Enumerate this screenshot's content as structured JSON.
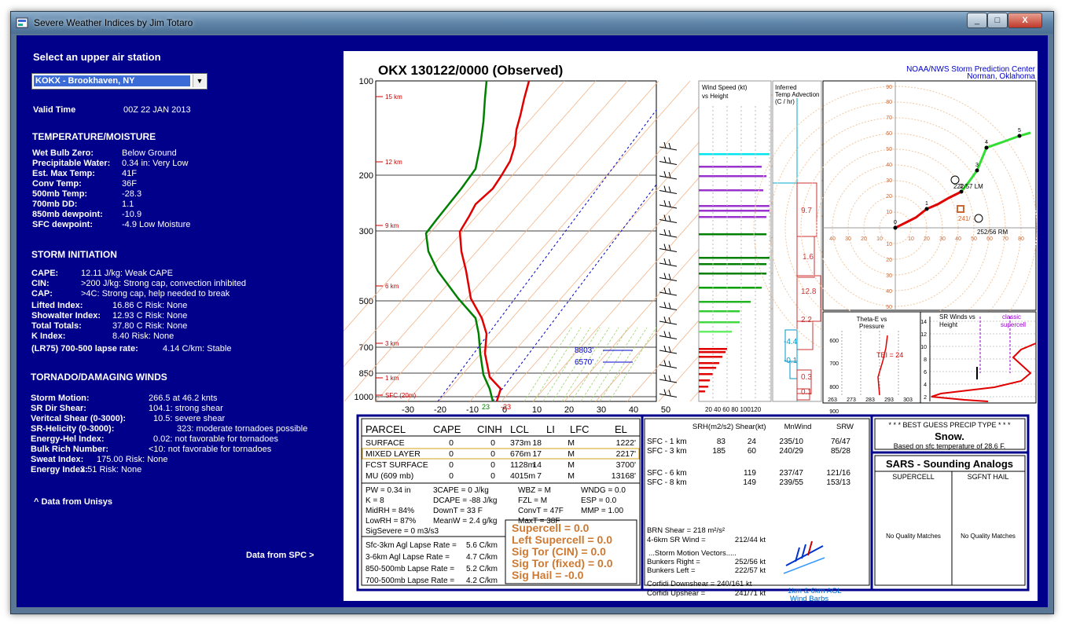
{
  "window": {
    "title": "Severe Weather Indices by Jim Totaro",
    "min": "_",
    "max": "□",
    "close": "X"
  },
  "left": {
    "station_prompt": "Select an upper air station",
    "station_value": "KOKX - Brookhaven, NY",
    "valid_label": "Valid Time",
    "valid_value": "00Z 22 JAN 2013",
    "temp_title": "TEMPERATURE/MOISTURE",
    "temp": [
      {
        "k": "Wet Bulb Zero:",
        "v": "Below Ground"
      },
      {
        "k": "Precipitable Water:",
        "v": "0.34 in: Very Low"
      },
      {
        "k": "Est. Max Temp:",
        "v": "41F"
      },
      {
        "k": "Conv Temp:",
        "v": "36F"
      },
      {
        "k": "500mb Temp:",
        "v": "-28.3"
      },
      {
        "k": "700mb DD:",
        "v": "1.1"
      },
      {
        "k": "850mb dewpoint:",
        "v": "-10.9"
      },
      {
        "k": "SFC dewpoint:",
        "v": "-4.9  Low Moisture"
      }
    ],
    "storm_title": "STORM INITIATION",
    "storm": [
      {
        "k": "CAPE:",
        "v": "12.11 J/kg: Weak CAPE"
      },
      {
        "k": "CIN:",
        "v": ">200 J/kg: Strong cap, convection inhibited"
      },
      {
        "k": "CAP:",
        "v": ">4C: Strong cap, help needed to break"
      },
      {
        "k": "Lifted Index:",
        "v": "16.86 C Risk: None"
      },
      {
        "k": "Showalter Index:",
        "v": "12.93 C Risk: None"
      },
      {
        "k": "Total Totals:",
        "v": "37.80 C Risk: None"
      },
      {
        "k": "K Index:",
        "v": "8.40   Risk: None"
      },
      {
        "k": "(LR75) 700-500 lapse rate:",
        "v": "4.14 C/km: Stable"
      }
    ],
    "tor_title": "TORNADO/DAMAGING WINDS",
    "tor": [
      {
        "k": "Storm Motion:",
        "v": "266.5 at   46.2 knts"
      },
      {
        "k": "SR Dir Shear:",
        "v": "104.1: strong shear"
      },
      {
        "k": "Veritcal Shear (0-3000):",
        "v": "10.5: severe shear"
      },
      {
        "k": "SR-Helicity (0-3000):",
        "v": "323: moderate tornadoes possible"
      },
      {
        "k": "Energy-Hel Index:",
        "v": "0.02: not favorable for tornadoes"
      },
      {
        "k": "Bulk Rich Number:",
        "v": "<10: not favorable for tornadoes"
      },
      {
        "k": "Sweat Index:",
        "v": "175.00   Risk: None"
      },
      {
        "k": "Energy Index:",
        "v": "3.51   Risk: None"
      }
    ],
    "unisys": "^ Data from Unisys",
    "spc": "Data from SPC >"
  },
  "sounding": {
    "title": "OKX   130122/0000  (Observed)",
    "source1": "NOAA/NWS Storm Prediction Center",
    "source2": "Norman, Oklahoma",
    "pressure_ticks": [
      "100",
      "200",
      "300",
      "500",
      "700",
      "850",
      "1000"
    ],
    "temp_ticks": [
      "-30",
      "-20",
      "-10",
      "0",
      "10",
      "20",
      "30",
      "40",
      "50"
    ],
    "height_labels": [
      "15 km",
      "12 km",
      "9 km",
      "6 km",
      "3 km",
      "1 km",
      "SFC (20m)"
    ],
    "lfc_labels": [
      "8803'",
      "6570'"
    ],
    "sfc_temp": "-23",
    "sfc_dew": "23",
    "wind_title1": "Wind Speed (kt)",
    "wind_title2": "vs Height",
    "wind_ticks": "20 40 60 80 100120",
    "adv_title": [
      "Inferred",
      "Temp Advection",
      "(C / hr)"
    ],
    "adv_values": [
      "9.7",
      "1.6",
      "12.8",
      "2.2",
      "-4.4",
      "-0.1",
      "0.3",
      "0.1"
    ],
    "hodo_rings": [
      "90",
      "80",
      "70",
      "60",
      "50",
      "40",
      "30",
      "20",
      "10",
      "10",
      "20",
      "30",
      "40",
      "50"
    ],
    "hodo_x": [
      "40",
      "30",
      "20",
      "10",
      "10",
      "20",
      "30",
      "40",
      "50",
      "60",
      "70",
      "80"
    ],
    "hodo_labels": {
      "lm": "222/57 LM",
      "rm": "252/56 RM",
      "mean": "241/"
    },
    "hodo_points": [
      "0",
      "1",
      "2",
      "3",
      "4",
      "5"
    ],
    "theta_title": [
      "Theta-E vs",
      "Pressure"
    ],
    "theta_ticks": [
      "600",
      "700",
      "800",
      "900"
    ],
    "theta_x": [
      "263",
      "273",
      "283",
      "293",
      "303"
    ],
    "tei": "TEI = 24",
    "srw_title": [
      "SR Winds vs",
      "Height"
    ],
    "srw_class": [
      "classic",
      "supercell"
    ],
    "srw_ticks": [
      "14",
      "12",
      "10",
      "8",
      "6",
      "4",
      "2"
    ],
    "parcel_headers": [
      "PARCEL",
      "CAPE",
      "CINH",
      "LCL",
      "LI",
      "LFC",
      "EL"
    ],
    "parcels": [
      [
        "SURFACE",
        "0",
        "0",
        "373m",
        "18",
        "M",
        "1222'"
      ],
      [
        "MIXED LAYER",
        "0",
        "0",
        "676m",
        "17",
        "M",
        "2217'"
      ],
      [
        "FCST SURFACE",
        "0",
        "0",
        "1128m",
        "14",
        "M",
        "3700'"
      ],
      [
        "MU   (609 mb)",
        "0",
        "0",
        "4015m",
        "7",
        "M",
        "13168'"
      ]
    ],
    "misc": [
      [
        "PW = 0.34  in",
        "3CAPE = 0 J/kg",
        "WBZ = M",
        "WNDG = 0.0"
      ],
      [
        "K = 8",
        "DCAPE = -88 J/kg",
        "FZL = M",
        "ESP = 0.0"
      ],
      [
        "MidRH = 84%",
        "DownT = 33 F",
        "ConvT = 47F",
        "MMP = 1.00"
      ],
      [
        "LowRH = 87%",
        "MeanW = 2.4 g/kg",
        "MaxT = 38F",
        ""
      ]
    ],
    "sigsevere": "SigSevere = 0 m3/s3",
    "lapse": [
      [
        "Sfc-3km Agl Lapse Rate =",
        "5.6 C/km"
      ],
      [
        "3-6km Agl Lapse Rate =",
        "4.7 C/km"
      ],
      [
        "850-500mb Lapse Rate =",
        "5.2 C/km"
      ],
      [
        "700-500mb Lapse Rate =",
        "4.2 C/km"
      ]
    ],
    "params": [
      "Supercell = 0.0",
      "Left Supercell = 0.0",
      "Sig Tor (CIN) = 0.0",
      "Sig Tor (fixed) = 0.0",
      "Sig Hail = -0.0"
    ],
    "shear_headers": [
      "SRH(m2/s2)",
      "Shear(kt)",
      "MnWind",
      "SRW"
    ],
    "shear_rows": [
      [
        "SFC - 1 km",
        "83",
        "24",
        "235/10",
        "76/47"
      ],
      [
        "SFC - 3 km",
        "185",
        "60",
        "240/29",
        "85/28"
      ],
      [
        "SFC - 6 km",
        "",
        "119",
        "237/47",
        "121/16"
      ],
      [
        "SFC - 8 km",
        "",
        "149",
        "239/55",
        "153/13"
      ]
    ],
    "brn": "BRN Shear = 218 m²/s²",
    "sr46": "4-6km SR Wind =",
    "sr46v": "212/44 kt",
    "smv": "...Storm Motion Vectors.....",
    "bright": "Bunkers Right =",
    "brightv": "252/56 kt",
    "bleft": "Bunkers Left =",
    "bleftv": "222/57 kt",
    "cdown": "Corfidi Downshear = 240/161 kt",
    "cup": "Corfidi Upshear =",
    "cupv": "241/71 kt",
    "barb_label1": "1km & 6km AGL",
    "barb_label2": "Wind Barbs",
    "precip_title": "* * * BEST GUESS PRECIP TYPE * * *",
    "precip_type": "Snow.",
    "precip_note": "Based on sfc temperature of 28.6 F.",
    "sars_title": "SARS - Sounding Analogs",
    "sars_cols": [
      "SUPERCELL",
      "SGFNT HAIL"
    ],
    "sars_none": [
      "No Quality Matches",
      "No Quality Matches"
    ]
  },
  "colors": {
    "navy": "#00008b",
    "temp": "#e00000",
    "dew": "#008000",
    "adv": "#cc3333",
    "hodo": "#ff0000"
  }
}
